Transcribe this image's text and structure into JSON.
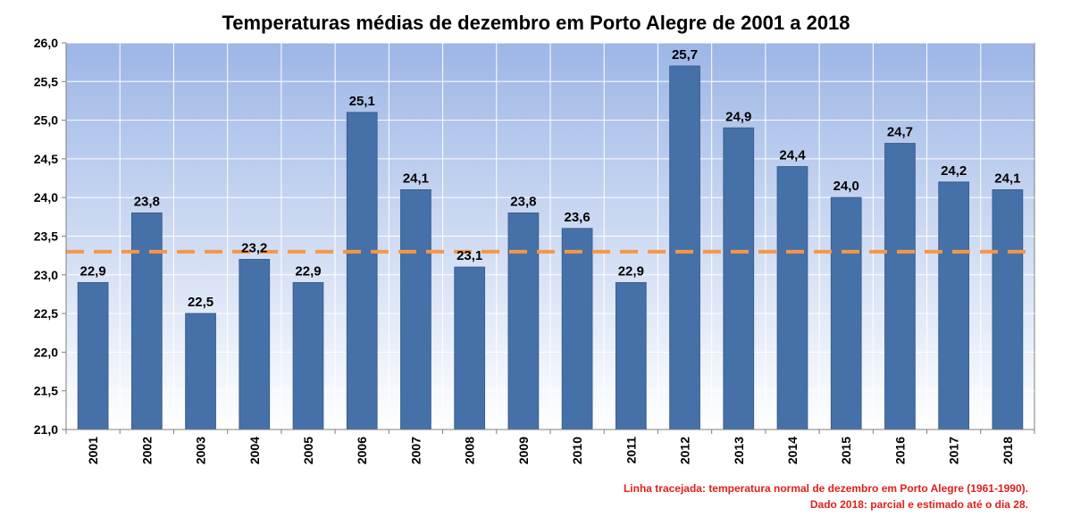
{
  "chart_data": {
    "type": "bar",
    "title": "Temperaturas médias de dezembro em Porto Alegre de 2001 a 2018",
    "xlabel": "",
    "ylabel": "",
    "categories": [
      "2001",
      "2002",
      "2003",
      "2004",
      "2005",
      "2006",
      "2007",
      "2008",
      "2009",
      "2010",
      "2011",
      "2012",
      "2013",
      "2014",
      "2015",
      "2016",
      "2017",
      "2018"
    ],
    "values": [
      22.9,
      23.8,
      22.5,
      23.2,
      22.9,
      25.1,
      24.1,
      23.1,
      23.8,
      23.6,
      22.9,
      25.7,
      24.9,
      24.4,
      24.0,
      24.7,
      24.2,
      24.1
    ],
    "value_labels": [
      "22,9",
      "23,8",
      "22,5",
      "23,2",
      "22,9",
      "25,1",
      "24,1",
      "23,1",
      "23,8",
      "23,6",
      "22,9",
      "25,7",
      "24,9",
      "24,4",
      "24,0",
      "24,7",
      "24,2",
      "24,1"
    ],
    "ylim": [
      21.0,
      26.0
    ],
    "yticks": [
      21.0,
      21.5,
      22.0,
      22.5,
      23.0,
      23.5,
      24.0,
      24.5,
      25.0,
      25.5,
      26.0
    ],
    "ytick_labels": [
      "21,0",
      "21,5",
      "22,0",
      "22,5",
      "23,0",
      "23,5",
      "24,0",
      "24,5",
      "25,0",
      "25,5",
      "26,0"
    ],
    "reference_line": {
      "value": 23.3,
      "style": "dashed",
      "color": "#f79646"
    },
    "grid": {
      "horizontal": true,
      "vertical": true
    },
    "bar_color": "#4571a8",
    "background_gradient": [
      "#9db6e6",
      "#ffffff"
    ],
    "notes": [
      "Linha tracejada:  temperatura normal  de dezembro em Porto  Alegre (1961-1990).",
      "Dado 2018:  parcial e estimado até o dia 28."
    ],
    "note_color": "#e0201b"
  }
}
